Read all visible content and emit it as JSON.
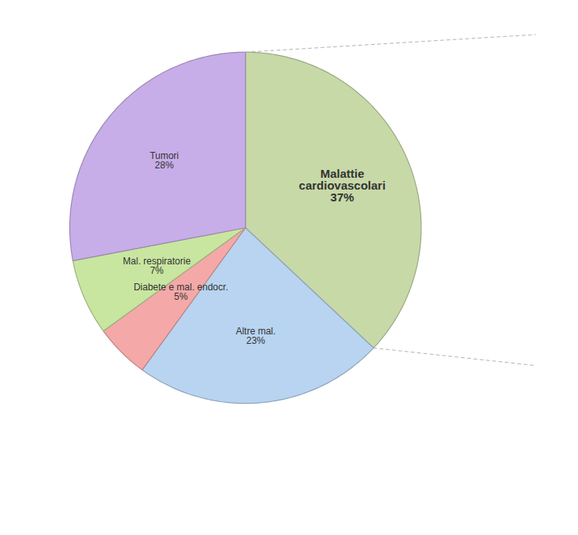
{
  "chart_data": {
    "type": "pie",
    "categories": [
      "Malattie\ncardiovascolari",
      "Altre mal.",
      "Diabete e mal. endocr.",
      "Mal. respiratorie",
      "Tumori"
    ],
    "values": [
      37,
      23,
      5,
      7,
      28
    ],
    "value_labels": [
      "37%",
      "23%",
      "5%",
      "7%",
      "28%"
    ],
    "colors": [
      "#c8d9a8",
      "#b8d4f0",
      "#f4a9a8",
      "#c8e6a0",
      "#c8aee8"
    ],
    "data_labels": true
  }
}
